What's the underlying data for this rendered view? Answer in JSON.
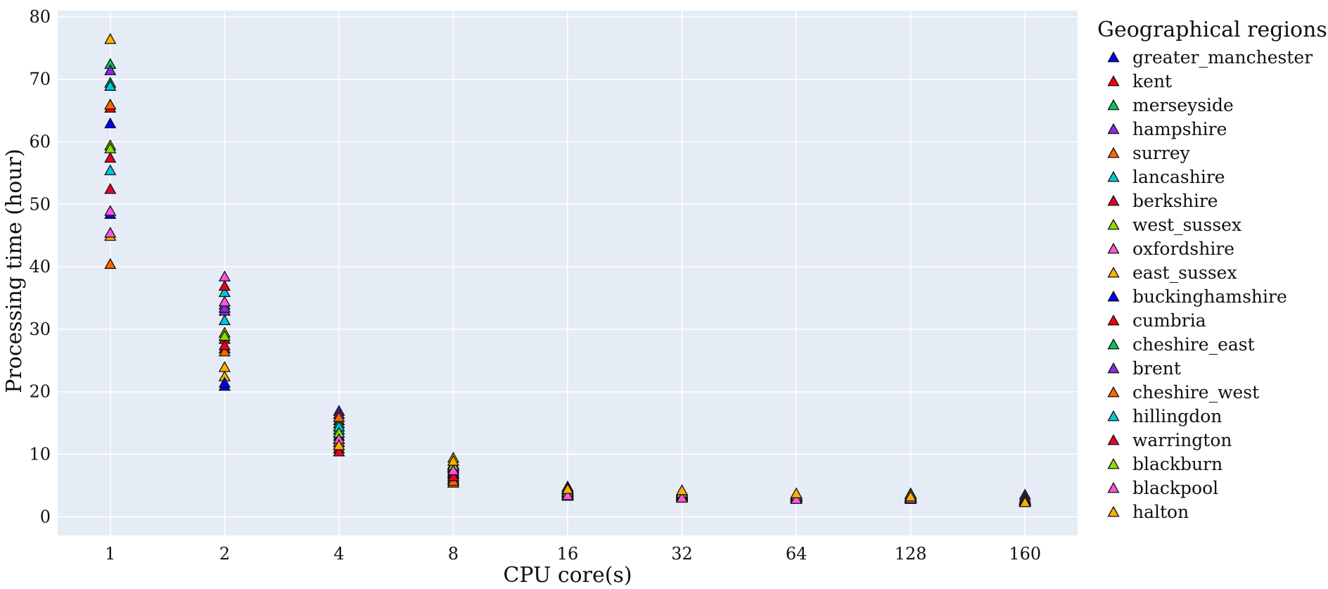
{
  "chart_data": {
    "type": "scatter",
    "marker": "triangle",
    "xlabel": "CPU core(s)",
    "ylabel": "Processing time (hour)",
    "categories": [
      "1",
      "2",
      "4",
      "8",
      "16",
      "32",
      "64",
      "128",
      "160"
    ],
    "ylim": [
      -3,
      81
    ],
    "yticks": [
      0,
      10,
      20,
      30,
      40,
      50,
      60,
      70,
      80
    ],
    "grid": true,
    "background": "#e5ecf6",
    "legend_title": "Geographical regions",
    "legend_position": "right",
    "series": [
      {
        "name": "greater_manchester",
        "color": "#0000ff",
        "values": [
          48.5,
          21.0,
          13.0,
          7.0,
          3.8,
          3.6,
          3.3,
          3.0,
          2.8
        ]
      },
      {
        "name": "kent",
        "color": "#ff0000",
        "values": [
          69.0,
          28.5,
          15.5,
          6.5,
          4.2,
          3.8,
          3.4,
          3.1,
          2.7
        ]
      },
      {
        "name": "merseyside",
        "color": "#00c853",
        "values": [
          72.5,
          33.5,
          13.5,
          7.5,
          3.5,
          3.5,
          3.2,
          3.5,
          2.6
        ]
      },
      {
        "name": "hampshire",
        "color": "#8a2be2",
        "values": [
          71.5,
          33.0,
          17.0,
          8.0,
          4.0,
          3.4,
          3.3,
          3.2,
          3.6
        ]
      },
      {
        "name": "surrey",
        "color": "#ff6600",
        "values": [
          40.5,
          27.0,
          12.0,
          5.5,
          4.8,
          3.9,
          3.6,
          3.0,
          2.5
        ]
      },
      {
        "name": "lancashire",
        "color": "#00c8e0",
        "values": [
          55.5,
          36.0,
          14.0,
          8.2,
          3.9,
          3.5,
          3.4,
          3.3,
          2.8
        ]
      },
      {
        "name": "berkshire",
        "color": "#e8002a",
        "values": [
          57.5,
          37.0,
          11.0,
          6.0,
          4.5,
          3.7,
          3.3,
          3.1,
          2.6
        ]
      },
      {
        "name": "west_sussex",
        "color": "#88e000",
        "values": [
          59.5,
          29.5,
          14.5,
          8.5,
          4.2,
          4.0,
          3.4,
          3.6,
          2.7
        ]
      },
      {
        "name": "oxfordshire",
        "color": "#ff55dd",
        "values": [
          49.0,
          38.5,
          12.5,
          7.8,
          3.6,
          3.2,
          3.0,
          3.1,
          2.6
        ]
      },
      {
        "name": "east_sussex",
        "color": "#ffb000",
        "values": [
          45.0,
          22.5,
          12.0,
          9.5,
          4.4,
          4.2,
          3.7,
          3.2,
          2.5
        ]
      },
      {
        "name": "buckinghamshire",
        "color": "#0000ff",
        "values": [
          63.0,
          21.5,
          12.5,
          7.2,
          3.9,
          3.6,
          3.5,
          3.4,
          2.9
        ]
      },
      {
        "name": "cumbria",
        "color": "#ff0000",
        "values": [
          65.5,
          27.0,
          11.5,
          6.2,
          4.1,
          3.7,
          3.4,
          3.2,
          2.7
        ]
      },
      {
        "name": "cheshire_east",
        "color": "#00c853",
        "values": [
          69.5,
          34.0,
          15.0,
          7.0,
          3.4,
          3.6,
          3.2,
          3.8,
          2.9
        ]
      },
      {
        "name": "brent",
        "color": "#8a2be2",
        "values": [
          66.0,
          33.5,
          16.5,
          8.0,
          4.3,
          3.3,
          3.1,
          3.0,
          3.2
        ]
      },
      {
        "name": "cheshire_west",
        "color": "#ff6600",
        "values": [
          66.0,
          26.5,
          16.0,
          5.8,
          4.9,
          3.8,
          3.5,
          2.9,
          2.4
        ]
      },
      {
        "name": "hillingdon",
        "color": "#00c8e0",
        "values": [
          69.0,
          31.5,
          14.5,
          6.8,
          3.7,
          3.4,
          3.3,
          3.2,
          2.7
        ]
      },
      {
        "name": "warrington",
        "color": "#e8002a",
        "values": [
          52.5,
          27.5,
          10.5,
          6.5,
          4.6,
          3.9,
          3.6,
          3.1,
          2.6
        ]
      },
      {
        "name": "blackburn",
        "color": "#88e000",
        "values": [
          59.0,
          29.0,
          13.5,
          8.3,
          4.0,
          3.9,
          3.5,
          3.7,
          2.8
        ]
      },
      {
        "name": "blackpool",
        "color": "#ff55dd",
        "values": [
          45.5,
          34.5,
          12.5,
          7.5,
          3.5,
          3.1,
          2.9,
          3.0,
          2.5
        ]
      },
      {
        "name": "halton",
        "color": "#ffb000",
        "values": [
          76.5,
          24.0,
          11.5,
          9.0,
          4.5,
          4.3,
          3.8,
          3.3,
          2.4
        ]
      }
    ]
  }
}
